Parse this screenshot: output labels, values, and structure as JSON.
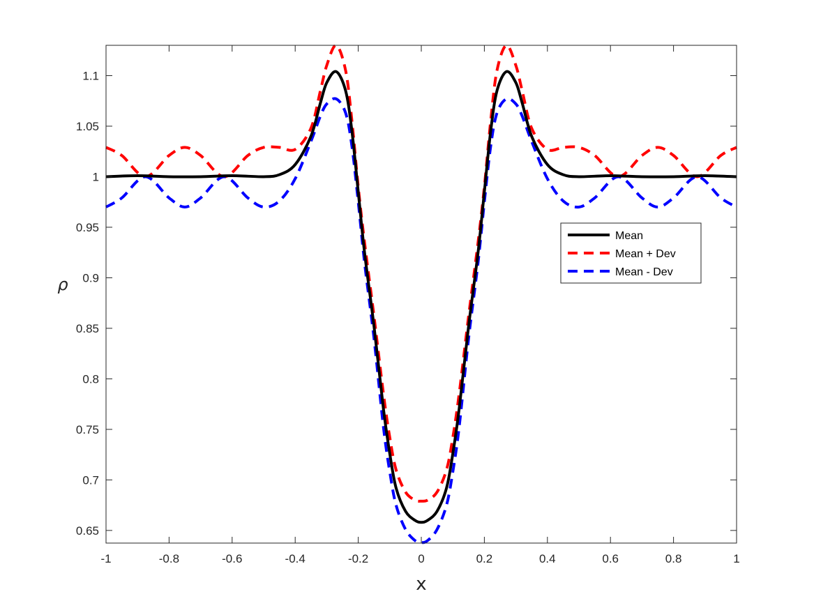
{
  "chart_data": {
    "type": "line",
    "title": "",
    "xlabel": "x",
    "ylabel": "ρ",
    "xlim": [
      -1,
      1
    ],
    "ylim": [
      0.6375,
      1.13
    ],
    "xticks": [
      -1,
      -0.8,
      -0.6,
      -0.4,
      -0.2,
      0,
      0.2,
      0.4,
      0.6,
      0.8,
      1
    ],
    "xtick_labels": [
      "-1",
      "-0.8",
      "-0.6",
      "-0.4",
      "-0.2",
      "0",
      "0.2",
      "0.4",
      "0.6",
      "0.8",
      "1"
    ],
    "yticks": [
      0.65,
      0.7,
      0.75,
      0.8,
      0.85,
      0.9,
      0.95,
      1,
      1.05,
      1.1
    ],
    "ytick_labels": [
      "0.65",
      "0.7",
      "0.75",
      "0.8",
      "0.85",
      "0.9",
      "0.95",
      "1",
      "1.05",
      "1.1"
    ],
    "grid": false,
    "legend_position": "right",
    "series": [
      {
        "name": "Mean",
        "color": "#000000",
        "style": "solid",
        "x": [
          -1,
          -0.9,
          -0.8,
          -0.7,
          -0.6,
          -0.5,
          -0.45,
          -0.4,
          -0.35,
          -0.32,
          -0.3,
          -0.27,
          -0.24,
          -0.22,
          -0.2,
          -0.18,
          -0.15,
          -0.12,
          -0.1,
          -0.08,
          -0.05,
          -0.02,
          0,
          0.02,
          0.05,
          0.08,
          0.1,
          0.12,
          0.15,
          0.18,
          0.2,
          0.22,
          0.24,
          0.27,
          0.3,
          0.32,
          0.35,
          0.4,
          0.45,
          0.5,
          0.6,
          0.7,
          0.8,
          0.9,
          1
        ],
        "y": [
          1.0,
          1.001,
          1.0,
          1.0,
          1.001,
          1.0,
          1.002,
          1.012,
          1.04,
          1.073,
          1.093,
          1.104,
          1.085,
          1.045,
          0.985,
          0.925,
          0.852,
          0.77,
          0.726,
          0.692,
          0.669,
          0.66,
          0.658,
          0.66,
          0.669,
          0.692,
          0.726,
          0.77,
          0.852,
          0.925,
          0.985,
          1.045,
          1.085,
          1.104,
          1.093,
          1.073,
          1.04,
          1.012,
          1.002,
          1.0,
          1.001,
          1.0,
          1.0,
          1.001,
          1.0
        ]
      },
      {
        "name": "Mean + Dev",
        "color": "#ff0000",
        "style": "dashed",
        "x": [
          -1,
          -0.95,
          -0.875,
          -0.8,
          -0.75,
          -0.7,
          -0.625,
          -0.55,
          -0.5,
          -0.45,
          -0.4,
          -0.35,
          -0.32,
          -0.3,
          -0.27,
          -0.24,
          -0.22,
          -0.2,
          -0.18,
          -0.15,
          -0.12,
          -0.1,
          -0.08,
          -0.05,
          -0.02,
          0,
          0.02,
          0.05,
          0.08,
          0.1,
          0.12,
          0.15,
          0.18,
          0.2,
          0.22,
          0.24,
          0.27,
          0.3,
          0.32,
          0.35,
          0.4,
          0.45,
          0.5,
          0.55,
          0.625,
          0.7,
          0.75,
          0.8,
          0.875,
          0.95,
          1
        ],
        "y": [
          1.029,
          1.021,
          1.0,
          1.021,
          1.029,
          1.021,
          1.0,
          1.021,
          1.029,
          1.029,
          1.027,
          1.048,
          1.085,
          1.11,
          1.13,
          1.105,
          1.055,
          0.99,
          0.935,
          0.862,
          0.785,
          0.742,
          0.71,
          0.688,
          0.68,
          0.679,
          0.68,
          0.688,
          0.71,
          0.742,
          0.785,
          0.862,
          0.935,
          0.99,
          1.055,
          1.105,
          1.13,
          1.11,
          1.085,
          1.048,
          1.027,
          1.029,
          1.029,
          1.021,
          1.0,
          1.021,
          1.029,
          1.021,
          1.0,
          1.021,
          1.029
        ]
      },
      {
        "name": "Mean - Dev",
        "color": "#0000ff",
        "style": "dashed",
        "x": [
          -1,
          -0.95,
          -0.875,
          -0.8,
          -0.75,
          -0.7,
          -0.625,
          -0.55,
          -0.5,
          -0.45,
          -0.4,
          -0.35,
          -0.32,
          -0.3,
          -0.27,
          -0.24,
          -0.22,
          -0.2,
          -0.18,
          -0.15,
          -0.12,
          -0.1,
          -0.08,
          -0.05,
          -0.02,
          0,
          0.02,
          0.05,
          0.08,
          0.1,
          0.12,
          0.15,
          0.18,
          0.2,
          0.22,
          0.24,
          0.27,
          0.3,
          0.32,
          0.35,
          0.4,
          0.45,
          0.5,
          0.55,
          0.625,
          0.7,
          0.75,
          0.8,
          0.875,
          0.95,
          1
        ],
        "y": [
          0.97,
          0.979,
          1.0,
          0.979,
          0.97,
          0.979,
          1.0,
          0.979,
          0.97,
          0.976,
          0.998,
          1.035,
          1.06,
          1.072,
          1.077,
          1.063,
          1.03,
          0.975,
          0.915,
          0.84,
          0.752,
          0.708,
          0.675,
          0.651,
          0.64,
          0.638,
          0.64,
          0.651,
          0.675,
          0.708,
          0.752,
          0.84,
          0.915,
          0.975,
          1.03,
          1.063,
          1.077,
          1.072,
          1.06,
          1.035,
          0.998,
          0.976,
          0.97,
          0.979,
          1.0,
          0.979,
          0.97,
          0.979,
          1.0,
          0.979,
          0.97
        ]
      }
    ]
  }
}
